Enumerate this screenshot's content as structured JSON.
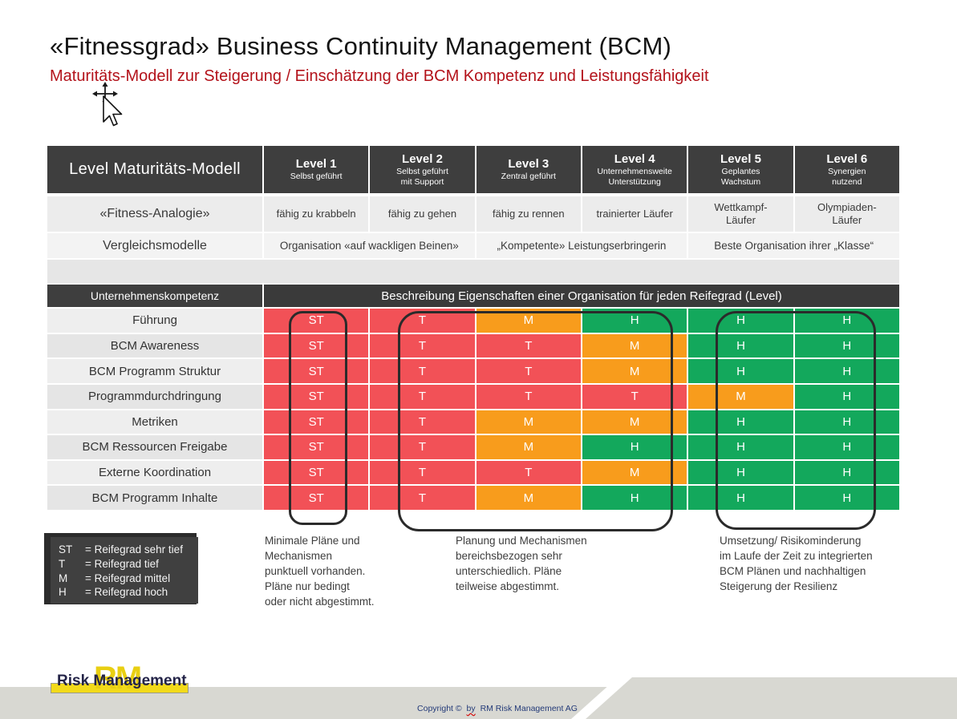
{
  "page": {
    "title": "«Fitnessgrad» Business Continuity Management (BCM)",
    "subtitle": "Maturitäts-Modell zur Steigerung / Einschätzung der BCM Kompetenz und Leistungsfähigkeit"
  },
  "table": {
    "header": {
      "label": "Level Maturitäts-Modell",
      "levels": [
        {
          "title": "Level 1",
          "subtitle": "Selbst geführt"
        },
        {
          "title": "Level 2",
          "subtitle": "Selbst geführt\nmit Support"
        },
        {
          "title": "Level 3",
          "subtitle": "Zentral geführt"
        },
        {
          "title": "Level 4",
          "subtitle": "Unternehmensweite\nUnterstützung"
        },
        {
          "title": "Level 5",
          "subtitle": "Geplantes\nWachstum"
        },
        {
          "title": "Level 6",
          "subtitle": "Synergien\nnutzend"
        }
      ]
    },
    "fitness_analogie": {
      "label": "«Fitness-Analogie»",
      "values": [
        "fähig zu krabbeln",
        "fähig zu gehen",
        "fähig zu rennen",
        "trainierter Läufer",
        "Wettkampf-\nLäufer",
        "Olympiaden-\nLäufer"
      ]
    },
    "vergleichsmodelle": {
      "label": "Vergleichsmodelle",
      "values": [
        "Organisation «auf wackligen Beinen»",
        "„Kompetente» Leistungserbringerin",
        "Beste Organisation ihrer „Klasse“"
      ]
    },
    "matrix_header": {
      "label": "Unternehmenskompetenz",
      "description": "Beschreibung Eigenschaften einer Organisation für jeden Reifegrad (Level)"
    },
    "rows": [
      {
        "label": "Führung",
        "values": [
          "ST",
          "T",
          "M",
          "H",
          "H",
          "H"
        ]
      },
      {
        "label": "BCM Awareness",
        "values": [
          "ST",
          "T",
          "T",
          "M",
          "H",
          "H"
        ]
      },
      {
        "label": "BCM Programm Struktur",
        "values": [
          "ST",
          "T",
          "T",
          "M",
          "H",
          "H"
        ]
      },
      {
        "label": "Programmdurchdringung",
        "values": [
          "ST",
          "T",
          "T",
          "T",
          "M",
          "H"
        ]
      },
      {
        "label": "Metriken",
        "values": [
          "ST",
          "T",
          "M",
          "M",
          "H",
          "H"
        ]
      },
      {
        "label": "BCM Ressourcen Freigabe",
        "values": [
          "ST",
          "T",
          "M",
          "H",
          "H",
          "H"
        ]
      },
      {
        "label": "Externe Koordination",
        "values": [
          "ST",
          "T",
          "T",
          "M",
          "H",
          "H"
        ]
      },
      {
        "label": "BCM Programm Inhalte",
        "values": [
          "ST",
          "T",
          "M",
          "H",
          "H",
          "H"
        ]
      }
    ],
    "value_colors": {
      "ST": "#f25157",
      "T": "#f25157",
      "M": "#f89c1c",
      "H": "#13a85c"
    }
  },
  "legend": {
    "items": [
      {
        "key": "ST",
        "text": "= Reifegrad sehr tief"
      },
      {
        "key": "T",
        "text": "= Reifegrad tief"
      },
      {
        "key": "M",
        "text": "= Reifegrad mittel"
      },
      {
        "key": "H",
        "text": "= Reifegrad hoch"
      }
    ]
  },
  "notes": [
    "Minimale Pläne und\nMechanismen\npunktuell vorhanden.\nPläne nur bedingt\noder nicht abgestimmt.",
    "Planung und Mechanismen\nbereichsbezogen sehr\nunterschiedlich. Pläne\nteilweise abgestimmt.",
    "Umsetzung/ Risikominderung\nim Laufe der Zeit zu integrierten\nBCM Plänen und nachhaltigen\nSteigerung der Resilienz"
  ],
  "footer": {
    "logo_monogram": "RM",
    "logo_text": "Risk Management",
    "copyright_pre": "Copyright ©",
    "copyright_by": "by",
    "copyright_post": "RM Risk Management AG"
  },
  "colors": {
    "header_dark": "#3e3e3e",
    "subtitle_red": "#b3121a",
    "logo_yellow": "#f2da1a",
    "footer_grey": "#d8d8d2",
    "copyright_navy": "#233a78"
  }
}
